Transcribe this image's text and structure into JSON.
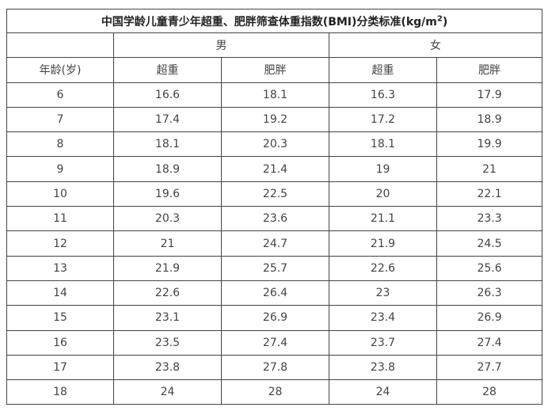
{
  "title": "中国学龄儿童青少年超重、肥胖筛查体重指数(BMI)分类标准(kg/m",
  "title_superscript": "2",
  "title_close": ")",
  "groups": [
    "男",
    "女"
  ],
  "columns": [
    "年龄(岁)",
    "超重",
    "肥胖",
    "超重",
    "肥胖"
  ],
  "rows": [
    [
      "6",
      "16.6",
      "18.1",
      "16.3",
      "17.9"
    ],
    [
      "7",
      "17.4",
      "19.2",
      "17.2",
      "18.9"
    ],
    [
      "8",
      "18.1",
      "20.3",
      "18.1",
      "19.9"
    ],
    [
      "9",
      "18.9",
      "21.4",
      "19",
      "21"
    ],
    [
      "10",
      "19.6",
      "22.5",
      "20",
      "22.1"
    ],
    [
      "11",
      "20.3",
      "23.6",
      "21.1",
      "23.3"
    ],
    [
      "12",
      "21",
      "24.7",
      "21.9",
      "24.5"
    ],
    [
      "13",
      "21.9",
      "25.7",
      "22.6",
      "25.6"
    ],
    [
      "14",
      "22.6",
      "26.4",
      "23",
      "26.3"
    ],
    [
      "15",
      "23.1",
      "26.9",
      "23.4",
      "26.9"
    ],
    [
      "16",
      "23.5",
      "27.4",
      "23.7",
      "27.4"
    ],
    [
      "17",
      "23.8",
      "27.8",
      "23.8",
      "27.7"
    ],
    [
      "18",
      "24",
      "28",
      "24",
      "28"
    ]
  ]
}
